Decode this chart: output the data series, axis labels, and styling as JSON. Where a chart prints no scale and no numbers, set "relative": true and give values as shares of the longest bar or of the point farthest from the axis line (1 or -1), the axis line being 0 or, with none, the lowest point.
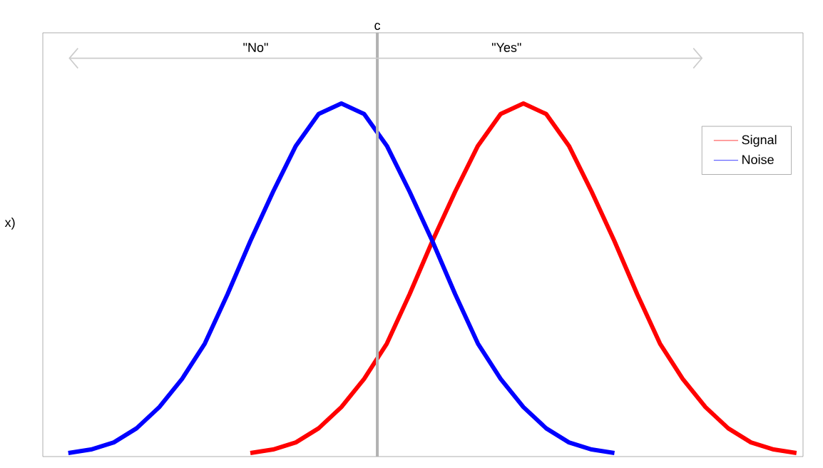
{
  "chart_data": {
    "type": "line",
    "relative": true,
    "ylabel": "x)",
    "tick_labels": false,
    "legend": "top right",
    "marker": "none",
    "line_style": "solid",
    "categories": [
      null,
      null,
      null,
      null,
      null,
      null,
      null,
      null,
      null,
      null,
      null,
      null,
      null,
      null,
      null,
      null,
      null,
      null,
      null,
      null,
      null,
      null,
      null,
      null,
      null,
      null,
      null,
      null,
      null,
      null,
      null,
      null,
      null
    ],
    "annotations": [
      "\"No\"",
      "\"Yes\"",
      "c"
    ],
    "series": [
      {
        "name": "Signal",
        "color": "#ff0000",
        "values": [
          null,
          null,
          null,
          null,
          null,
          null,
          null,
          null,
          0.01,
          0.02,
          0.04,
          0.08,
          0.14,
          0.22,
          0.32,
          0.46,
          0.61,
          0.75,
          0.88,
          0.97,
          1,
          0.97,
          0.88,
          0.75,
          0.61,
          0.46,
          0.32,
          0.22,
          0.14,
          0.08,
          0.04,
          0.02,
          0.01
        ]
      },
      {
        "name": "Noise",
        "color": "#0000ff",
        "values": [
          0.01,
          0.02,
          0.04,
          0.08,
          0.14,
          0.22,
          0.32,
          0.46,
          0.61,
          0.75,
          0.88,
          0.97,
          1,
          0.97,
          0.88,
          0.75,
          0.61,
          0.46,
          0.32,
          0.22,
          0.14,
          0.08,
          0.04,
          0.02,
          0.01,
          null,
          null,
          null,
          null,
          null,
          null,
          null,
          null
        ]
      }
    ]
  }
}
